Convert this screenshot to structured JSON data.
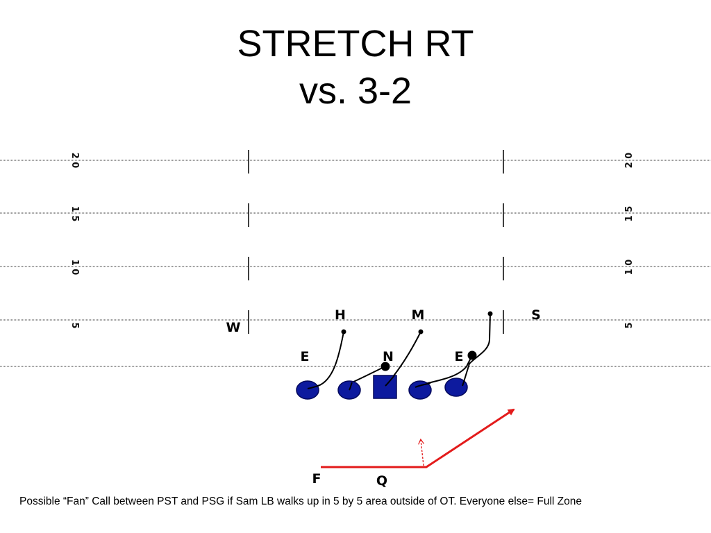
{
  "title": {
    "line1": "STRETCH RT",
    "line2": "vs. 3-2"
  },
  "yard_markers": {
    "left": [
      "2 0",
      "1 5",
      "1 0",
      "5"
    ],
    "right": [
      "2 0",
      "1 5",
      "1 0",
      "5"
    ]
  },
  "defense_labels": {
    "h": "H",
    "m": "M",
    "s": "S",
    "w": "W",
    "e_left": "E",
    "n": "N",
    "e_right": "E"
  },
  "offense_labels": {
    "f": "F",
    "q": "Q"
  },
  "colors": {
    "lineman": "#0d1a9e",
    "lineman_stroke": "#04095c",
    "route": "#e31b1b",
    "block": "#000000"
  },
  "note": "Possible “Fan” Call between PST and PSG if Sam LB walks up in 5 by 5 area outside of OT.  Everyone else= Full Zone"
}
